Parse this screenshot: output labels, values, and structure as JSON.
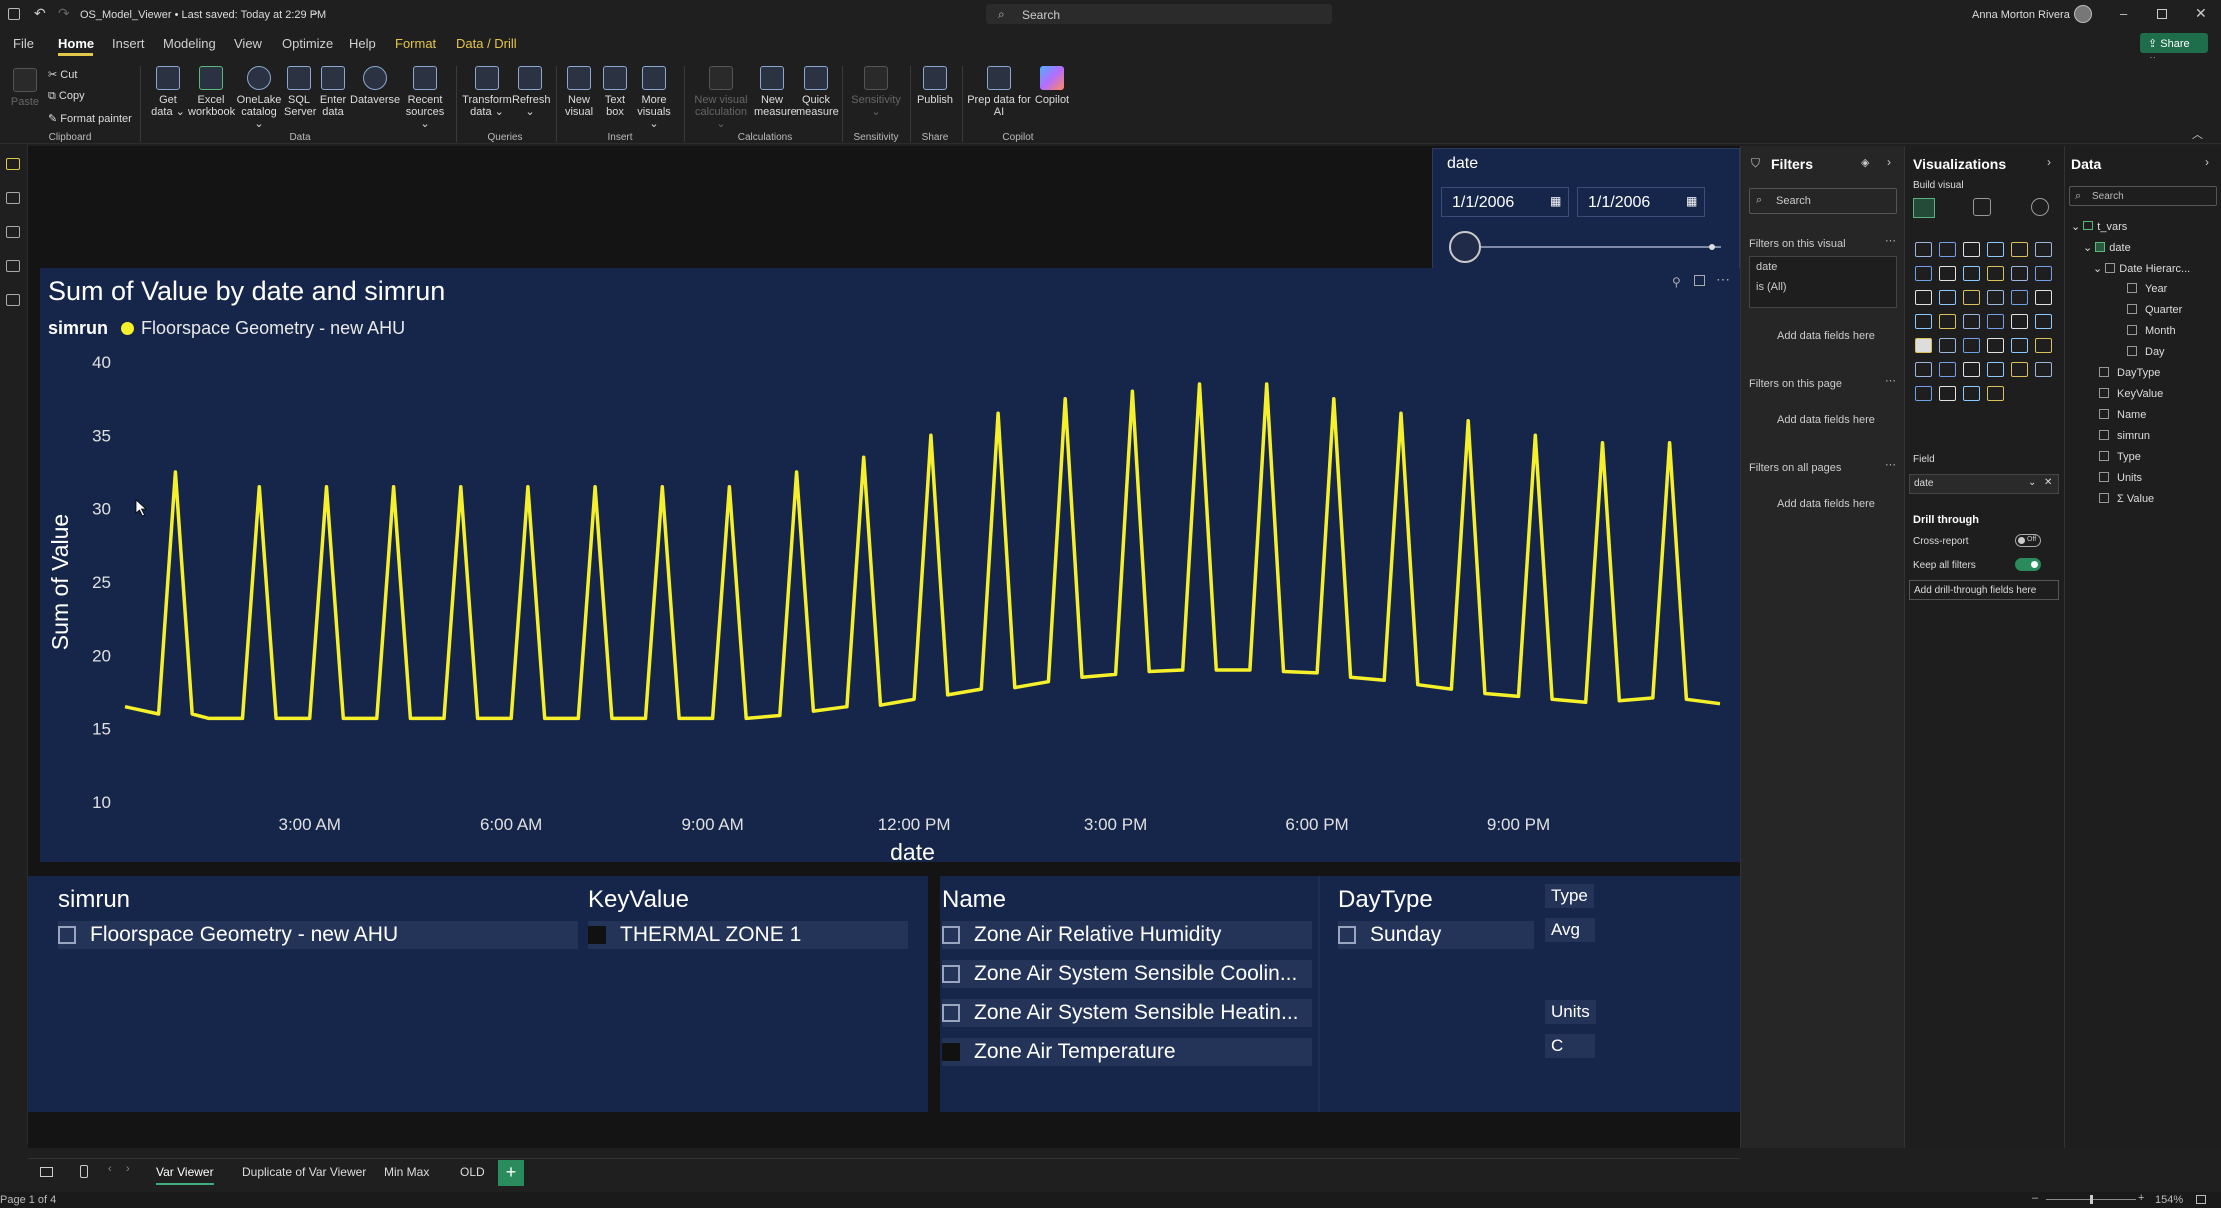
{
  "titlebar": {
    "file_title": "OS_Model_Viewer • Last saved: Today at 2:29 PM",
    "search_placeholder": "Search",
    "user_name": "Anna Morton Rivera"
  },
  "menu": {
    "file": "File",
    "home": "Home",
    "insert": "Insert",
    "modeling": "Modeling",
    "view": "View",
    "optimize": "Optimize",
    "help": "Help",
    "format": "Format",
    "data_drill": "Data / Drill",
    "share": "Share"
  },
  "ribbon": {
    "paste": "Paste",
    "cut": "Cut",
    "copy": "Copy",
    "format_painter": "Format painter",
    "clipboard": "Clipboard",
    "get_data_1": "Get",
    "get_data_2": "data ⌄",
    "excel_1": "Excel",
    "excel_2": "workbook",
    "onelake_1": "OneLake",
    "onelake_2": "catalog ⌄",
    "sql_1": "SQL",
    "sql_2": "Server",
    "enter_1": "Enter",
    "enter_2": "data",
    "dataverse": "Dataverse",
    "recent_1": "Recent",
    "recent_2": "sources ⌄",
    "data_group": "Data",
    "transform_1": "Transform",
    "transform_2": "data ⌄",
    "refresh_1": "Refresh",
    "refresh_2": "⌄",
    "queries_group": "Queries",
    "new_visual_1": "New",
    "new_visual_2": "visual",
    "text_box_1": "Text",
    "text_box_2": "box",
    "more_visuals_1": "More",
    "more_visuals_2": "visuals ⌄",
    "insert_group": "Insert",
    "new_visual_calc_1": "New visual",
    "new_visual_calc_2": "calculation ⌄",
    "new_measure_1": "New",
    "new_measure_2": "measure",
    "quick_measure_1": "Quick",
    "quick_measure_2": "measure",
    "calculations_group": "Calculations",
    "sensitivity_1": "Sensitivity",
    "sensitivity_2": "⌄",
    "sensitivity_group": "Sensitivity",
    "publish": "Publish",
    "share_group": "Share",
    "prep_1": "Prep data for",
    "prep_2": "AI",
    "copilot": "Copilot",
    "copilot_group": "Copilot"
  },
  "date_slicer": {
    "title": "date",
    "start": "1/1/2006",
    "end": "1/1/2006"
  },
  "chart": {
    "title": "Sum of Value by date and simrun",
    "legend_title": "simrun",
    "series_name": "Floorspace Geometry - new AHU",
    "series_color": "#f5f02a",
    "ylabel": "Sum of Value",
    "xlabel": "date"
  },
  "chart_data": {
    "type": "line",
    "title": "Sum of Value by date and simrun",
    "xlabel": "date",
    "ylabel": "Sum of Value",
    "ylim": [
      10,
      40
    ],
    "yticks": [
      10,
      15,
      20,
      25,
      30,
      35,
      40
    ],
    "x_tick_labels": [
      "3:00 AM",
      "6:00 AM",
      "9:00 AM",
      "12:00 PM",
      "3:00 PM",
      "6:00 PM",
      "9:00 PM"
    ],
    "x_tick_hours": [
      3,
      6,
      9,
      12,
      15,
      18,
      21
    ],
    "x_range_hours": [
      0.25,
      24
    ],
    "grid": false,
    "legend": "top-left",
    "series": [
      {
        "name": "Floorspace Geometry - new AHU",
        "color": "#f5f02a",
        "x_hours": [
          0.25,
          0.75,
          1,
          1.25,
          1.5,
          2,
          2.25,
          2.5,
          3,
          3.25,
          3.5,
          4,
          4.25,
          4.5,
          5,
          5.25,
          5.5,
          6,
          6.25,
          6.5,
          7,
          7.25,
          7.5,
          8,
          8.25,
          8.5,
          9,
          9.25,
          9.5,
          10,
          10.25,
          10.5,
          11,
          11.25,
          11.5,
          12,
          12.25,
          12.5,
          13,
          13.25,
          13.5,
          14,
          14.25,
          14.5,
          15,
          15.25,
          15.5,
          16,
          16.25,
          16.5,
          17,
          17.25,
          17.5,
          18,
          18.25,
          18.5,
          19,
          19.25,
          19.5,
          20,
          20.25,
          20.5,
          21,
          21.25,
          21.5,
          22,
          22.25,
          22.5,
          23,
          23.25,
          23.5,
          24
        ],
        "values": [
          16.5,
          16,
          32.5,
          16,
          15.7,
          15.7,
          31.5,
          15.7,
          15.7,
          31.5,
          15.7,
          15.7,
          31.5,
          15.7,
          15.7,
          31.5,
          15.7,
          15.7,
          31.5,
          15.7,
          15.7,
          31.5,
          15.7,
          15.7,
          31.5,
          15.7,
          15.7,
          31.5,
          15.7,
          15.9,
          32.5,
          16.2,
          16.5,
          33.5,
          16.6,
          17,
          35,
          17.3,
          17.7,
          36.5,
          17.8,
          18.2,
          37.5,
          18.5,
          18.7,
          38,
          18.9,
          19,
          38.5,
          19,
          19,
          38.5,
          18.9,
          18.8,
          37.5,
          18.5,
          18.3,
          36.5,
          18,
          17.7,
          36,
          17.4,
          17.2,
          35,
          17,
          16.8,
          34.5,
          16.9,
          17.1,
          34.5,
          17,
          16.7
        ]
      }
    ]
  },
  "slicers": {
    "simrun": {
      "header": "simrun",
      "items": [
        "Floorspace Geometry - new AHU"
      ]
    },
    "keyvalue": {
      "header": "KeyValue",
      "items": [
        "THERMAL ZONE 1"
      ]
    },
    "name": {
      "header": "Name",
      "items": [
        "Zone Air Relative Humidity",
        "Zone Air System Sensible Coolin...",
        "Zone Air System Sensible Heatin...",
        "Zone Air Temperature"
      ]
    },
    "daytype": {
      "header": "DayType",
      "items": [
        "Sunday"
      ]
    },
    "type": {
      "label": "Type",
      "value": "Avg"
    },
    "units": {
      "label": "Units",
      "value": "C"
    }
  },
  "filters_pane": {
    "title": "Filters",
    "search_placeholder": "Search",
    "on_visual": "Filters on this visual",
    "filter_field": "date",
    "filter_state": "is (All)",
    "add_fields": "Add data fields here",
    "on_page": "Filters on this page",
    "on_all_pages": "Filters on all pages"
  },
  "viz_pane": {
    "title": "Visualizations",
    "build_visual": "Build visual",
    "field_label": "Field",
    "field_value": "date",
    "drill_through": "Drill through",
    "cross_report": "Cross-report",
    "cross_report_state": "Off",
    "keep_all_filters": "Keep all filters",
    "add_drill": "Add drill-through fields here"
  },
  "data_pane": {
    "title": "Data",
    "search_placeholder": "Search",
    "table": "t_vars",
    "date_field": "date",
    "hierarchy": "Date Hierarc...",
    "levels": [
      "Year",
      "Quarter",
      "Month",
      "Day"
    ],
    "fields": [
      "DayType",
      "KeyValue",
      "Name",
      "simrun",
      "Type",
      "Units",
      "Value"
    ]
  },
  "tabs": [
    "Var Viewer",
    "Duplicate of Var Viewer",
    "Min Max",
    "OLD"
  ],
  "status": {
    "page": "Page 1 of 4",
    "zoom": "154%"
  }
}
